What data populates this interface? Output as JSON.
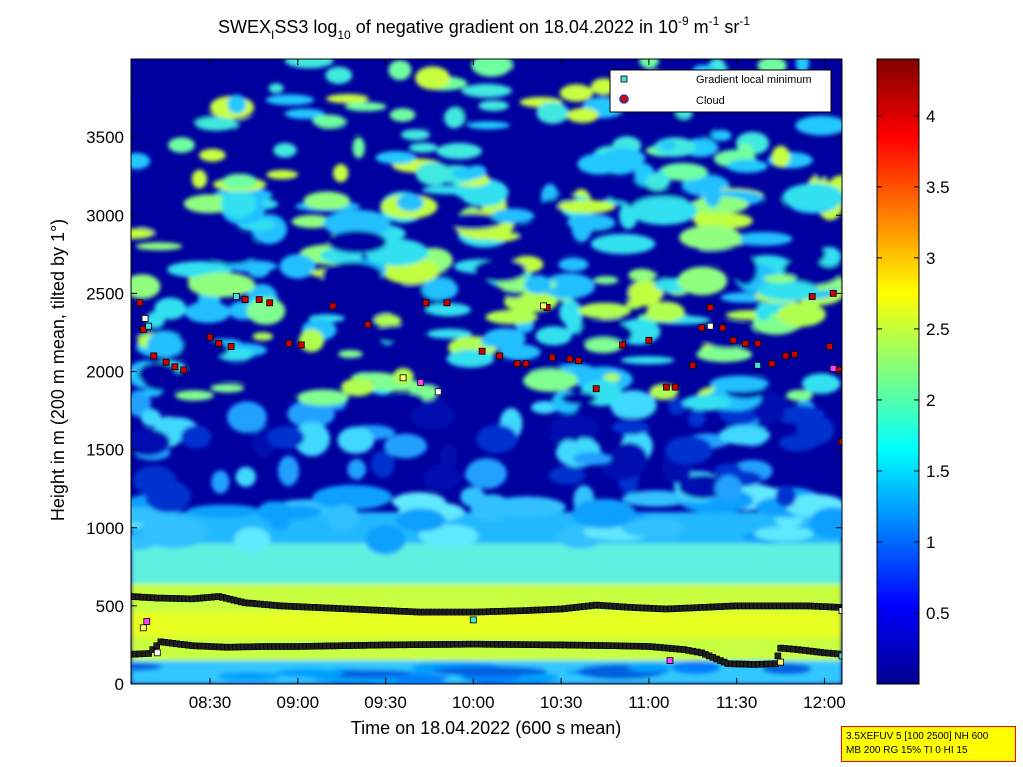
{
  "chart_data": {
    "type": "heatmap",
    "title": {
      "prefix": "SWEX",
      "prefix_sub": "I",
      "main": "SS3 log",
      "log_sub": "10",
      "rest": " of negative gradient on 18.04.2022 in 10",
      "exp1": "-9",
      "unit1": " m",
      "exp2": "-1",
      "unit2": " sr",
      "exp3": "-1"
    },
    "xlabel": "Time on 18.04.2022 (600 s mean)",
    "ylabel": "Height in m (200 m mean, tilted by 1°)",
    "x_range_hours": [
      8.05,
      12.1
    ],
    "y_range_m": [
      0,
      4000
    ],
    "x_ticks": [
      {
        "v": 8.5,
        "label": "08:30"
      },
      {
        "v": 9.0,
        "label": "09:00"
      },
      {
        "v": 9.5,
        "label": "09:30"
      },
      {
        "v": 10.0,
        "label": "10:00"
      },
      {
        "v": 10.5,
        "label": "10:30"
      },
      {
        "v": 11.0,
        "label": "11:00"
      },
      {
        "v": 11.5,
        "label": "11:30"
      },
      {
        "v": 12.0,
        "label": "12:00"
      }
    ],
    "y_ticks": [
      {
        "v": 0,
        "label": "0"
      },
      {
        "v": 500,
        "label": "500"
      },
      {
        "v": 1000,
        "label": "1000"
      },
      {
        "v": 1500,
        "label": "1500"
      },
      {
        "v": 2000,
        "label": "2000"
      },
      {
        "v": 2500,
        "label": "2500"
      },
      {
        "v": 3000,
        "label": "3000"
      },
      {
        "v": 3500,
        "label": "3500"
      }
    ],
    "colorbar": {
      "range": [
        0,
        4.4
      ],
      "ticks": [
        {
          "v": 0.5,
          "label": "0.5"
        },
        {
          "v": 1.0,
          "label": "1"
        },
        {
          "v": 1.5,
          "label": "1.5"
        },
        {
          "v": 2.0,
          "label": "2"
        },
        {
          "v": 2.5,
          "label": "2.5"
        },
        {
          "v": 3.0,
          "label": "3"
        },
        {
          "v": 3.5,
          "label": "3.5"
        },
        {
          "v": 4.0,
          "label": "4"
        }
      ],
      "colormap": "jet"
    },
    "legend": {
      "position": "top-right",
      "entries": [
        {
          "label": "Gradient local minimum",
          "color": "#40e0e0",
          "marker": "square"
        },
        {
          "label": "Cloud",
          "color": "#e00000",
          "marker": "circle"
        }
      ]
    },
    "layer_traces": [
      {
        "name": "upper",
        "points": [
          [
            8.05,
            560
          ],
          [
            8.2,
            550
          ],
          [
            8.4,
            545
          ],
          [
            8.55,
            560
          ],
          [
            8.7,
            520
          ],
          [
            8.9,
            500
          ],
          [
            9.1,
            490
          ],
          [
            9.3,
            480
          ],
          [
            9.5,
            470
          ],
          [
            9.7,
            460
          ],
          [
            10.0,
            460
          ],
          [
            10.3,
            470
          ],
          [
            10.5,
            480
          ],
          [
            10.7,
            505
          ],
          [
            10.9,
            490
          ],
          [
            11.1,
            480
          ],
          [
            11.3,
            490
          ],
          [
            11.5,
            500
          ],
          [
            11.7,
            500
          ],
          [
            11.9,
            500
          ],
          [
            12.1,
            490
          ]
        ]
      },
      {
        "name": "lower",
        "points": [
          [
            8.05,
            190
          ],
          [
            8.15,
            195
          ],
          [
            8.22,
            270
          ],
          [
            8.4,
            245
          ],
          [
            8.6,
            235
          ],
          [
            8.8,
            240
          ],
          [
            9.0,
            240
          ],
          [
            9.5,
            250
          ],
          [
            10.0,
            255
          ],
          [
            10.5,
            250
          ],
          [
            10.8,
            245
          ],
          [
            11.0,
            240
          ],
          [
            11.2,
            220
          ],
          [
            11.3,
            200
          ],
          [
            11.45,
            130
          ],
          [
            11.6,
            125
          ],
          [
            11.72,
            130
          ],
          [
            11.75,
            230
          ],
          [
            11.85,
            220
          ],
          [
            12.0,
            200
          ],
          [
            12.1,
            190
          ]
        ]
      }
    ],
    "cloud_clusters": [
      [
        8.1,
        2440
      ],
      [
        8.12,
        2270
      ],
      [
        8.18,
        2100
      ],
      [
        8.25,
        2060
      ],
      [
        8.3,
        2030
      ],
      [
        8.35,
        2010
      ],
      [
        8.5,
        2220
      ],
      [
        8.55,
        2180
      ],
      [
        8.62,
        2160
      ],
      [
        8.7,
        2460
      ],
      [
        8.78,
        2460
      ],
      [
        8.84,
        2440
      ],
      [
        8.95,
        2180
      ],
      [
        9.02,
        2170
      ],
      [
        9.2,
        2420
      ],
      [
        9.4,
        2300
      ],
      [
        9.73,
        2440
      ],
      [
        9.85,
        2440
      ],
      [
        10.05,
        2130
      ],
      [
        10.15,
        2100
      ],
      [
        10.25,
        2050
      ],
      [
        10.3,
        2050
      ],
      [
        10.42,
        2410
      ],
      [
        10.45,
        2090
      ],
      [
        10.55,
        2080
      ],
      [
        10.6,
        2070
      ],
      [
        10.7,
        1890
      ],
      [
        10.85,
        2170
      ],
      [
        11.0,
        2200
      ],
      [
        11.1,
        1900
      ],
      [
        11.15,
        1900
      ],
      [
        11.25,
        2040
      ],
      [
        11.3,
        2280
      ],
      [
        11.35,
        2410
      ],
      [
        11.42,
        2280
      ],
      [
        11.48,
        2200
      ],
      [
        11.55,
        2180
      ],
      [
        11.62,
        2180
      ],
      [
        11.7,
        2050
      ],
      [
        11.78,
        2100
      ],
      [
        11.83,
        2110
      ],
      [
        11.93,
        2480
      ],
      [
        12.03,
        2160
      ],
      [
        12.05,
        2500
      ],
      [
        12.08,
        2010
      ],
      [
        12.1,
        1550
      ]
    ],
    "minima_points": [
      [
        8.13,
        2340
      ],
      [
        8.15,
        2290
      ],
      [
        8.12,
        360
      ],
      [
        8.14,
        400
      ],
      [
        8.2,
        200
      ],
      [
        8.65,
        2480
      ],
      [
        9.6,
        1960
      ],
      [
        9.7,
        1930
      ],
      [
        9.8,
        1870
      ],
      [
        10.0,
        410
      ],
      [
        10.4,
        2420
      ],
      [
        11.12,
        150
      ],
      [
        11.35,
        2290
      ],
      [
        11.62,
        2040
      ],
      [
        11.75,
        140
      ],
      [
        12.05,
        2020
      ],
      [
        12.1,
        470
      ],
      [
        12.1,
        180
      ]
    ]
  },
  "info_box": {
    "line1": "3.5XEFUV 5 [100 2500] NH 600",
    "line2": "MB 200 RG 15% TI 0 HI 15"
  }
}
